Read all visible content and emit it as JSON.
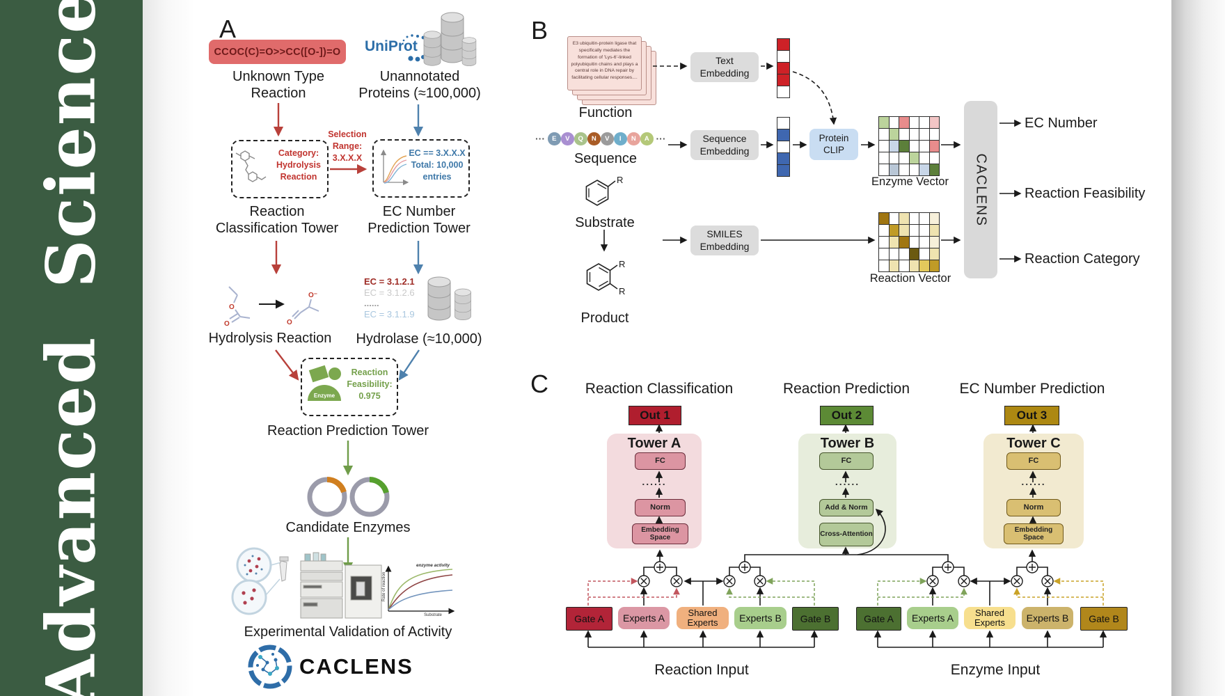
{
  "sidebar": {
    "journal": "Advanced Science"
  },
  "colors": {
    "sidebar_green": "#3B5C42",
    "red_accent": "#B8403A",
    "blue_accent": "#4E81AD",
    "green_accent": "#6F9C49",
    "smiles_box_bg": "#E06B6B",
    "smiles_text": "#6E1A1A",
    "category_red": "#C13530",
    "ec_blue": "#3E78A8",
    "feasibility_green": "#74A04B",
    "uniprot_blue": "#2C6EA8",
    "gray_box": "#DCDCDC",
    "clip_blue": "#C9DDF2",
    "out1_red": "#B01E2E",
    "out2_green": "#5C8A35",
    "out3_gold": "#AD8812",
    "towerA_bg": "#F3DBDE",
    "towerA_block": "#DC95A2",
    "towerB_bg": "#E7EDDC",
    "towerB_block": "#B3C999",
    "towerC_bg": "#F2EAD0",
    "towerC_block": "#D9BF72",
    "gateA_left": "#B22438",
    "expertsA_left": "#DB97A4",
    "shared_left": "#F0B07E",
    "expertsB_left": "#A8CE8C",
    "gateB_left": "#4C7031",
    "gateA_right": "#4C7031",
    "expertsA_right": "#A8CE8C",
    "shared_right": "#F7DF8E",
    "expertsB_right": "#CCB36B",
    "gateB_right": "#B1871B",
    "bar_gray": "#D9D9D9",
    "reddash": "#C2565E",
    "greendash": "#7FA35A",
    "golddash": "#C9A227"
  },
  "panelA": {
    "label": "A",
    "smiles": "CCOC(C)=O>>CC([O-])=O",
    "unknown": {
      "l1": "Unknown Type",
      "l2": "Reaction"
    },
    "uniprot": "UniProt",
    "unannotated": {
      "l1": "Unannotated",
      "l2": "Proteins (≈100,000)"
    },
    "selection": {
      "l1": "Selection",
      "l2": "Range:",
      "l3": "3.X.X.X"
    },
    "category_box": {
      "l1": "Category:",
      "l2": "Hydrolysis",
      "l3": "Reaction"
    },
    "ec_box": {
      "l1": "EC == 3.X.X.X",
      "l2": "Total: 10,000",
      "l3": "entries"
    },
    "classification_tower": {
      "l1": "Reaction",
      "l2": "Classification Tower"
    },
    "ec_tower": {
      "l1": "EC Number",
      "l2": "Prediction Tower"
    },
    "hydrolysis_label": "Hydrolysis Reaction",
    "ec_list": [
      {
        "text": "EC = 3.1.2.1",
        "color": "#9E2B25",
        "bold": true
      },
      {
        "text": "EC = 3.1.2.6",
        "color": "#C9C9C9",
        "bold": false
      },
      {
        "text": "......",
        "color": "#9E9E9E",
        "bold": true
      },
      {
        "text": "EC = 3.1.1.9",
        "color": "#A9C7DF",
        "bold": false
      }
    ],
    "hydrolase_label": "Hydrolase (≈10,000)",
    "feasibility_box": {
      "enzyme": "Enzyme",
      "l1": "Reaction",
      "l2": "Feasibility:",
      "l3": "0.975"
    },
    "prediction_tower_label": "Reaction Prediction Tower",
    "candidate_label": "Candidate Enzymes",
    "validation_label": "Experimental Validation of Activity",
    "kinetics": {
      "annotation": "enzyme activity",
      "ylabel": "Rate of reaction",
      "xlabel": "Substrate"
    },
    "atoms": {
      "o": "O",
      "o_minus": "O⁻"
    },
    "wordmark": "CACLENS"
  },
  "panelB": {
    "label": "B",
    "function_card": "E3 ubiquitin-protein ligase that specifically mediates the formation of 'Lys-6'-linked polyubiquitin chains and plays a central role in DNA repair by facilitating cellular responses....",
    "function_label": "Function",
    "ellipsis": "···",
    "sequence_letters": [
      {
        "ch": "E",
        "color": "#7F9BB3"
      },
      {
        "ch": "V",
        "color": "#A98FD1"
      },
      {
        "ch": "Q",
        "color": "#A9C38B"
      },
      {
        "ch": "N",
        "color": "#A95C26"
      },
      {
        "ch": "V",
        "color": "#9B9B9B"
      },
      {
        "ch": "I",
        "color": "#6FAECB"
      },
      {
        "ch": "N",
        "color": "#E8A49C"
      },
      {
        "ch": "A",
        "color": "#B4C878"
      }
    ],
    "sequence_label": "Sequence",
    "substrate_label": "Substrate",
    "product_label": "Product",
    "r_group": "R",
    "boxes": {
      "text": {
        "l1": "Text",
        "l2": "Embedding"
      },
      "sequence": {
        "l1": "Sequence",
        "l2": "Embedding"
      },
      "smiles": {
        "l1": "SMILES",
        "l2": "Embedding"
      },
      "clip": {
        "l1": "Protein",
        "l2": "CLIP"
      }
    },
    "text_vector": [
      "#CE2127",
      "#FFFFFF",
      "#CE2127",
      "#CE2127",
      "#FFFFFF"
    ],
    "seq_vector": [
      "#FFFFFF",
      "#3F67B0",
      "#FFFFFF",
      "#3F67B0",
      "#3F67B0"
    ],
    "enzyme_matrix": [
      [
        "#BCD49C",
        "#FFFFFF",
        "#E88C8C",
        "#FFFFFF",
        "#FFFFFF",
        "#F3C6C6"
      ],
      [
        "#FFFFFF",
        "#BCD49C",
        "#FFFFFF",
        "#FFFFFF",
        "#FFFFFF",
        "#FFFFFF"
      ],
      [
        "#FFFFFF",
        "#C8D6E8",
        "#5C7F3A",
        "#FFFFFF",
        "#FFFFFF",
        "#E88C8C"
      ],
      [
        "#FFFFFF",
        "#FFFFFF",
        "#FFFFFF",
        "#BCD49C",
        "#FFFFFF",
        "#FFFFFF"
      ],
      [
        "#FFFFFF",
        "#B9C7D6",
        "#FFFFFF",
        "#FFFFFF",
        "#C8D6E8",
        "#5C7F3A"
      ]
    ],
    "reaction_matrix": [
      [
        "#A07612",
        "#FFFFFF",
        "#EFE3B0",
        "#FFFFFF",
        "#FFFFFF",
        "#F7F0DA"
      ],
      [
        "#FFFFFF",
        "#C09B26",
        "#EFE3B0",
        "#FFFFFF",
        "#FFFFFF",
        "#EFE3B0"
      ],
      [
        "#FFFFFF",
        "#EFE3B0",
        "#A07612",
        "#FFFFFF",
        "#FFFFFF",
        "#F7F0DA"
      ],
      [
        "#FFFFFF",
        "#FFFFFF",
        "#FFFFFF",
        "#6B5A10",
        "#FFFFFF",
        "#EFE3B0"
      ],
      [
        "#FFFFFF",
        "#EFE3B0",
        "#FFFFFF",
        "#EFE3B0",
        "#E3C95C",
        "#C09B26"
      ]
    ],
    "enzyme_vector_label": "Enzyme Vector",
    "reaction_vector_label": "Reaction Vector",
    "bar_label": "CACLENS",
    "outputs": [
      "EC Number",
      "Reaction Feasibility",
      "Reaction Category"
    ]
  },
  "panelC": {
    "label": "C",
    "headings": [
      "Reaction Classification",
      "Reaction Prediction",
      "EC Number Prediction"
    ],
    "outs": [
      "Out 1",
      "Out 2",
      "Out 3"
    ],
    "towerA": {
      "title": "Tower A",
      "blocks": [
        "FC",
        "......",
        "Norm",
        "Embedding Space"
      ]
    },
    "towerB": {
      "title": "Tower B",
      "blocks": [
        "FC",
        "......",
        "Add & Norm",
        "Cross-Attention"
      ]
    },
    "towerC": {
      "title": "Tower C",
      "blocks": [
        "FC",
        "......",
        "Norm",
        "Embedding Space"
      ]
    },
    "moe_left": {
      "boxes": [
        "Gate A",
        "Experts A",
        "Shared Experts",
        "Experts B",
        "Gate B"
      ],
      "input_label": "Reaction Input"
    },
    "moe_right": {
      "boxes": [
        "Gate A",
        "Experts A",
        "Shared Experts",
        "Experts B",
        "Gate B"
      ],
      "input_label": "Enzyme Input"
    }
  }
}
